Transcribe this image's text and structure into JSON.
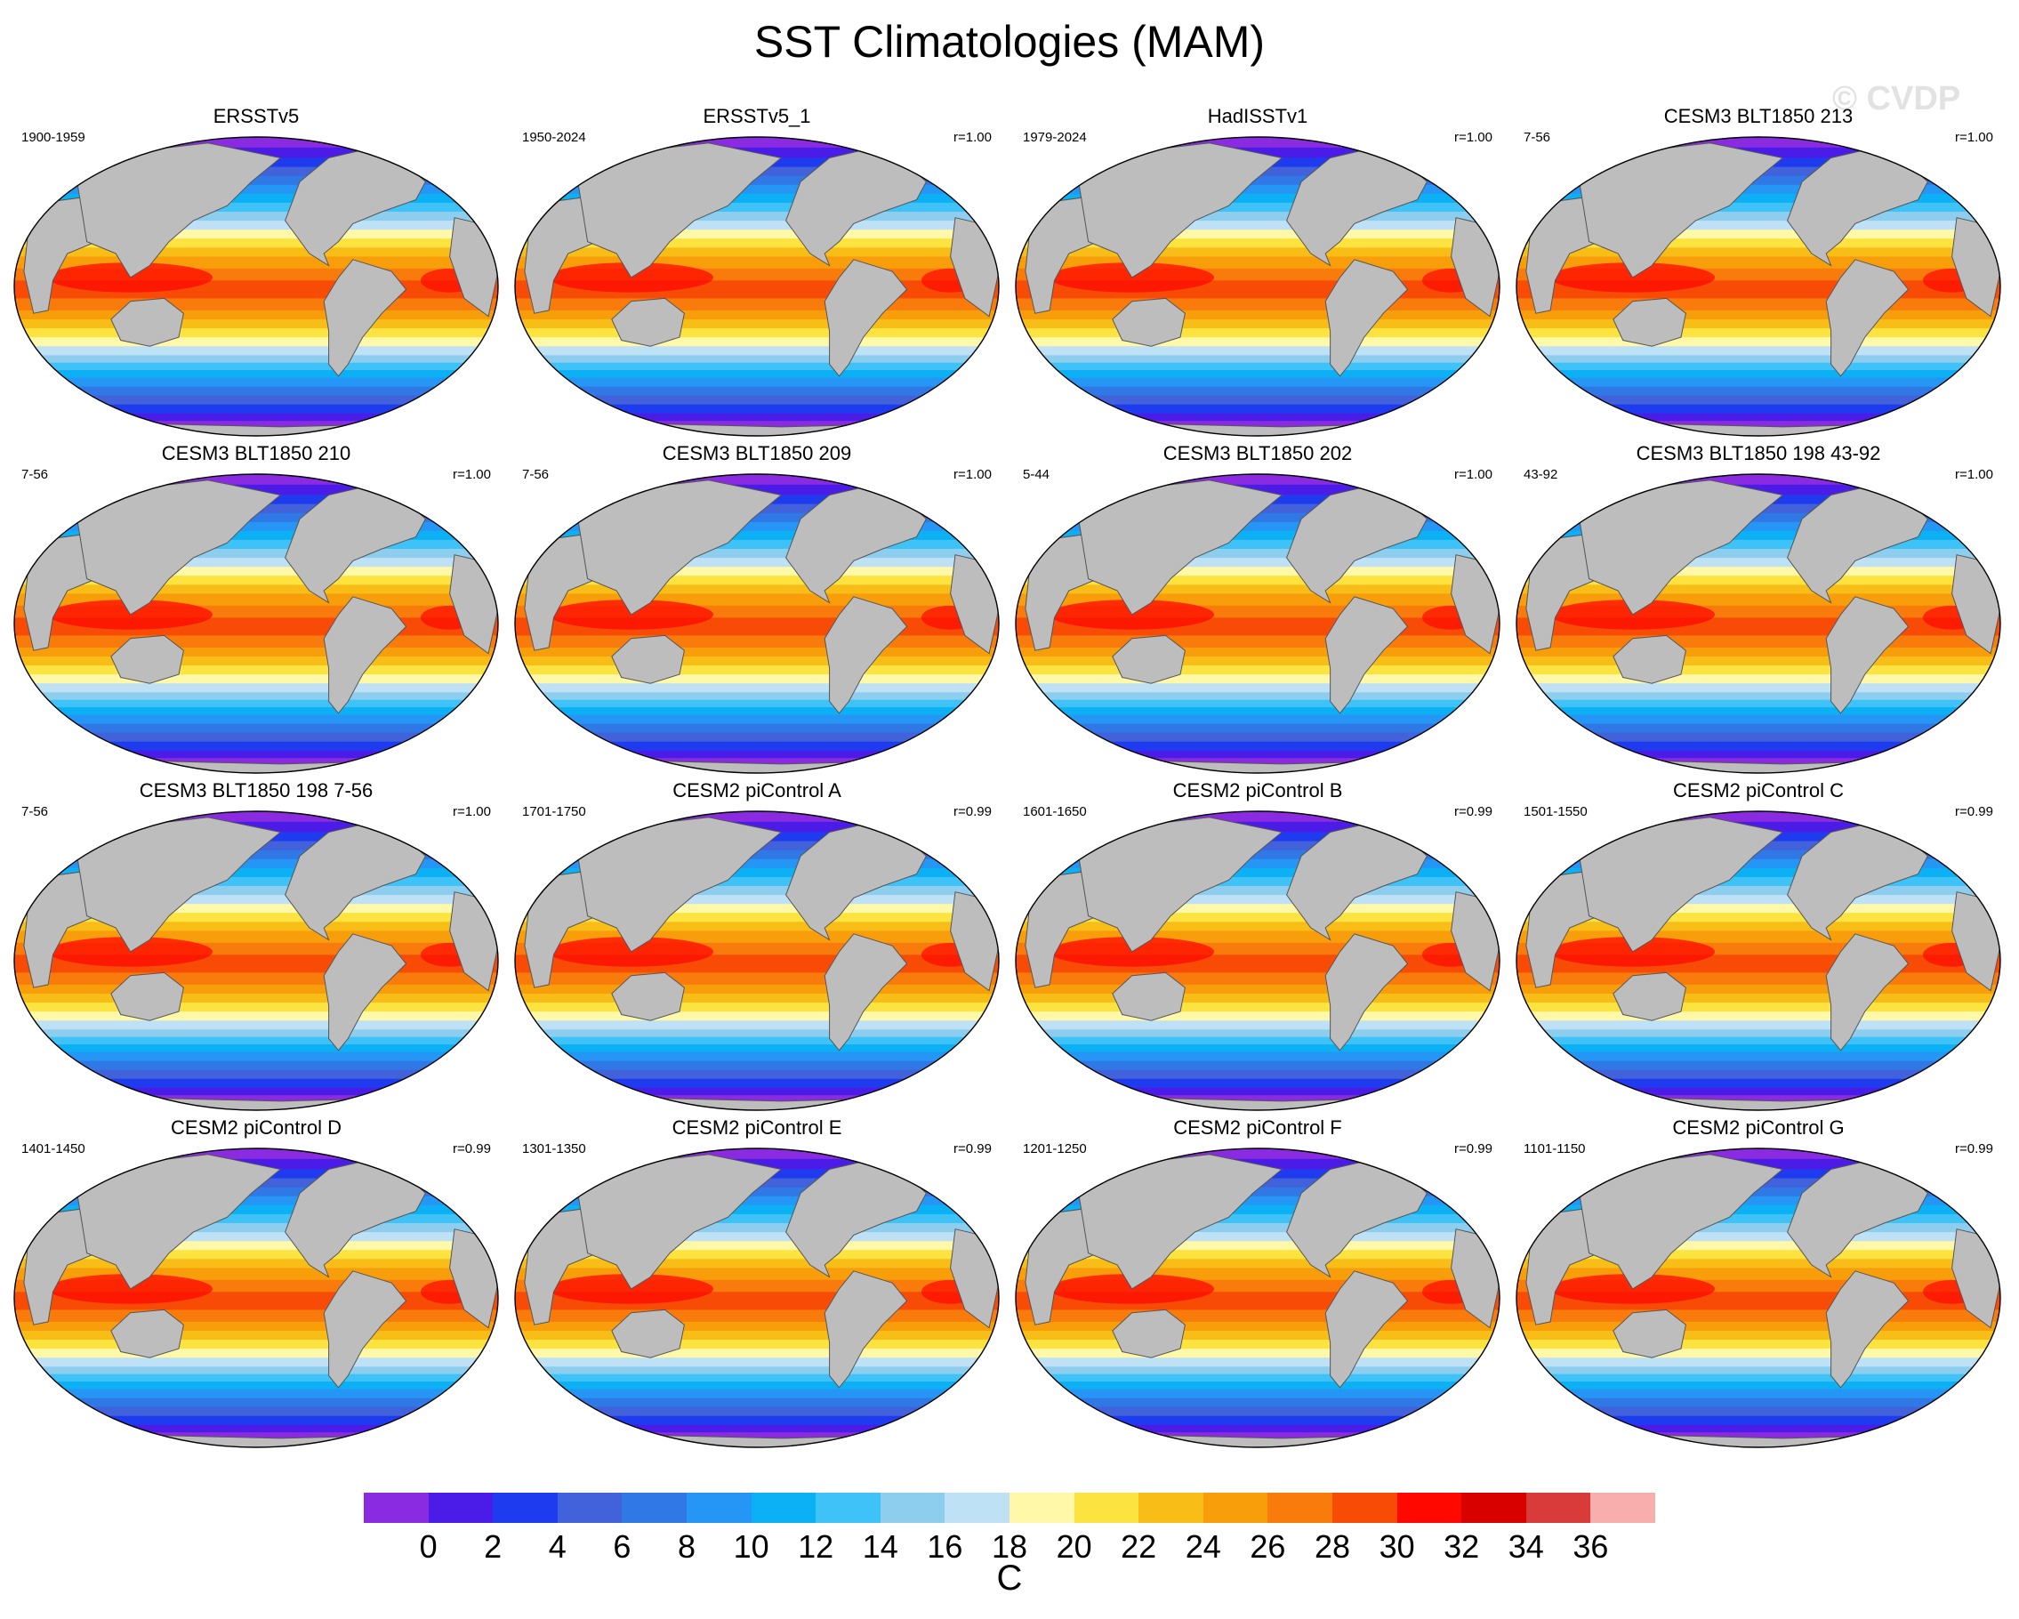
{
  "title": "SST Climatologies (MAM)",
  "watermark": "© CVDP",
  "units": "C",
  "colorbar": {
    "ticks": [
      "0",
      "2",
      "4",
      "6",
      "8",
      "10",
      "12",
      "14",
      "16",
      "18",
      "20",
      "22",
      "24",
      "26",
      "28",
      "30",
      "32",
      "34",
      "36"
    ],
    "colors": [
      "#8a2be2",
      "#4b1ce8",
      "#1f3bf0",
      "#4262dc",
      "#3078e6",
      "#2596f5",
      "#0cb0f5",
      "#3ec2f7",
      "#8dcded",
      "#bfe1f5",
      "#fff8a8",
      "#fde340",
      "#f8be17",
      "#f99e0b",
      "#f97b0c",
      "#f84c06",
      "#ff0800",
      "#d90000",
      "#d93a3a",
      "#f9aeae"
    ]
  },
  "legend": {
    "land": "#bdbdbd"
  },
  "panels": [
    {
      "title": "ERSSTv5",
      "years": "1900-1959",
      "r": ""
    },
    {
      "title": "ERSSTv5_1",
      "years": "1950-2024",
      "r": "r=1.00"
    },
    {
      "title": "HadISSTv1",
      "years": "1979-2024",
      "r": "r=1.00"
    },
    {
      "title": "CESM3 BLT1850 213",
      "years": "7-56",
      "r": "r=1.00"
    },
    {
      "title": "CESM3 BLT1850 210",
      "years": "7-56",
      "r": "r=1.00"
    },
    {
      "title": "CESM3 BLT1850 209",
      "years": "7-56",
      "r": "r=1.00"
    },
    {
      "title": "CESM3 BLT1850 202",
      "years": "5-44",
      "r": "r=1.00"
    },
    {
      "title": "CESM3 BLT1850 198 43-92",
      "years": "43-92",
      "r": "r=1.00"
    },
    {
      "title": "CESM3 BLT1850 198 7-56",
      "years": "7-56",
      "r": "r=1.00"
    },
    {
      "title": "CESM2 piControl A",
      "years": "1701-1750",
      "r": "r=0.99"
    },
    {
      "title": "CESM2 piControl B",
      "years": "1601-1650",
      "r": "r=0.99"
    },
    {
      "title": "CESM2 piControl C",
      "years": "1501-1550",
      "r": "r=0.99"
    },
    {
      "title": "CESM2 piControl D",
      "years": "1401-1450",
      "r": "r=0.99"
    },
    {
      "title": "CESM2 piControl E",
      "years": "1301-1350",
      "r": "r=0.99"
    },
    {
      "title": "CESM2 piControl F",
      "years": "1201-1250",
      "r": "r=0.99"
    },
    {
      "title": "CESM2 piControl G",
      "years": "1101-1150",
      "r": "r=0.99"
    }
  ]
}
